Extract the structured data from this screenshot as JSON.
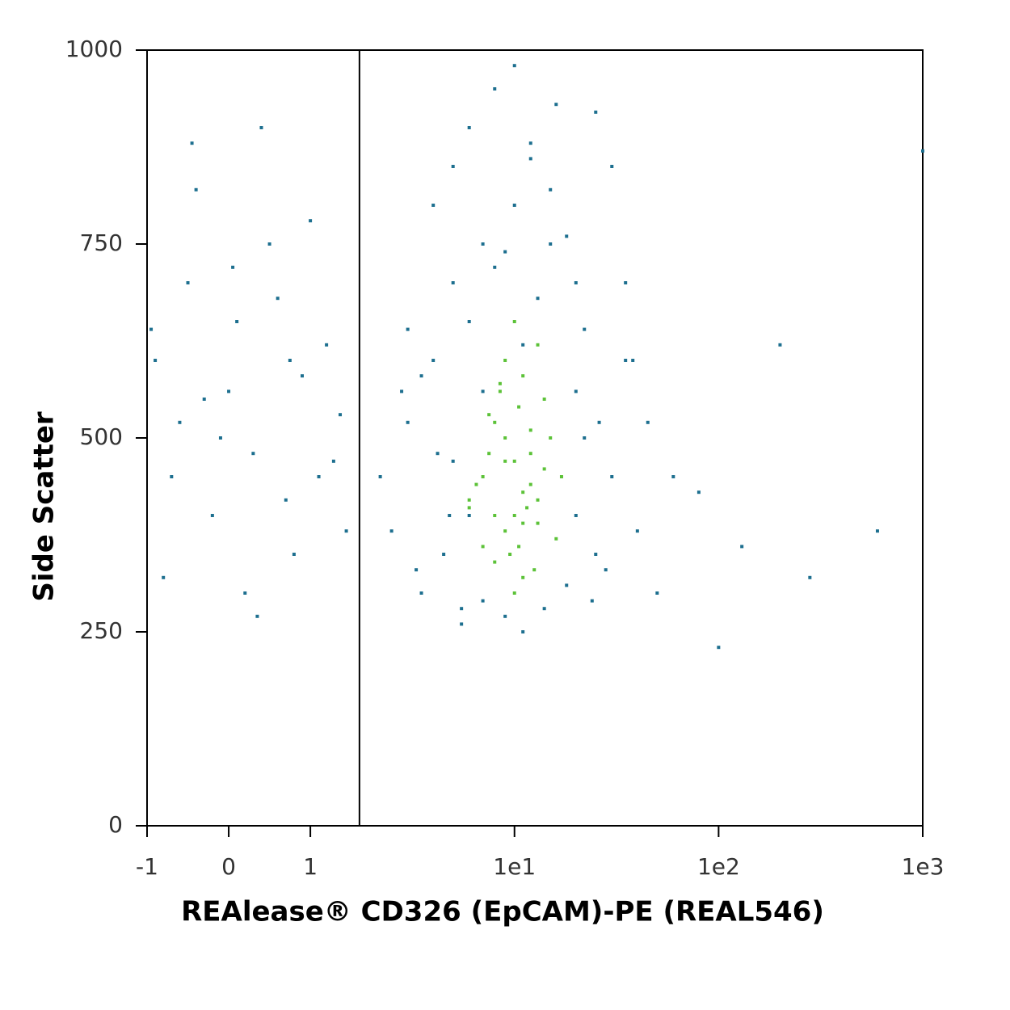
{
  "chart_data": {
    "type": "scatter",
    "x_label": "REAlease® CD326 (EpCAM)-PE (REAL546)",
    "y_label": "Side Scatter",
    "xscale": "symlog",
    "linthresh": 1,
    "linscale": 0.4,
    "xlim": [
      -1,
      1000
    ],
    "xticks": [
      -1,
      0,
      1,
      {
        "value": 10,
        "label": "1e1"
      },
      {
        "value": 100,
        "label": "1e2"
      },
      {
        "value": 1000,
        "label": "1e3"
      }
    ],
    "ylim": [
      0,
      1000
    ],
    "yticks": [
      0,
      250,
      500,
      750,
      1000
    ],
    "gate_x": 1.74,
    "points": [
      {
        "color": "#1d6f8f",
        "x": [
          2.2,
          2.5,
          3,
          3.5,
          4,
          4.5,
          5,
          5.5,
          6,
          7,
          20,
          22,
          25,
          30,
          35,
          40,
          45,
          50,
          60,
          3,
          4,
          5,
          6,
          8,
          10,
          12,
          15,
          18,
          20,
          25,
          30,
          2.8,
          3.3,
          4.2,
          5.5,
          7,
          9,
          11,
          14,
          18,
          24,
          28,
          35,
          8,
          10,
          12,
          16,
          6,
          9,
          13,
          20,
          5,
          7,
          11,
          15,
          3.5,
          4.8,
          22,
          26,
          38,
          -0.9,
          -0.7,
          -0.5,
          -0.3,
          -0.1,
          0.1,
          0.3,
          0.5,
          0.7,
          0.9,
          1.2,
          1.5,
          -0.8,
          -0.4,
          0,
          0.4,
          0.8,
          1.3,
          -0.6,
          0.2,
          0.6,
          1,
          -0.2,
          1.4,
          -0.95,
          0.35,
          0.75,
          -0.45,
          1.1,
          0.05,
          100,
          600,
          280,
          1000,
          200,
          80,
          130
        ],
        "y": [
          450,
          380,
          520,
          300,
          600,
          350,
          700,
          280,
          650,
          750,
          400,
          500,
          350,
          450,
          600,
          380,
          520,
          300,
          450,
          640,
          800,
          850,
          900,
          950,
          980,
          880,
          820,
          760,
          700,
          920,
          850,
          560,
          330,
          480,
          260,
          290,
          270,
          250,
          280,
          310,
          290,
          330,
          700,
          720,
          800,
          860,
          930,
          400,
          740,
          680,
          560,
          470,
          560,
          620,
          750,
          580,
          400,
          640,
          520,
          600,
          600,
          450,
          700,
          550,
          500,
          650,
          480,
          750,
          420,
          580,
          620,
          380,
          320,
          820,
          560,
          900,
          350,
          470,
          520,
          300,
          680,
          780,
          400,
          530,
          640,
          270,
          600,
          880,
          450,
          720,
          230,
          380,
          320,
          870,
          620,
          430,
          360
        ]
      },
      {
        "color": "#5cc238",
        "x": [
          6,
          7,
          8,
          9,
          10,
          11,
          12,
          13,
          14,
          8.5,
          9.5,
          10.5,
          11.5,
          7.5,
          6.5,
          15,
          16,
          12.5,
          9,
          10,
          8,
          11,
          7,
          13,
          10,
          9,
          12,
          8,
          11,
          10,
          14,
          6,
          17,
          9,
          10.5,
          12,
          7.5,
          11,
          8.5,
          13
        ],
        "y": [
          420,
          450,
          400,
          380,
          470,
          430,
          510,
          390,
          460,
          560,
          350,
          540,
          410,
          480,
          440,
          500,
          370,
          330,
          600,
          300,
          520,
          580,
          360,
          620,
          400,
          470,
          440,
          340,
          390,
          650,
          550,
          410,
          450,
          500,
          360,
          480,
          530,
          320,
          570,
          420
        ]
      }
    ]
  }
}
